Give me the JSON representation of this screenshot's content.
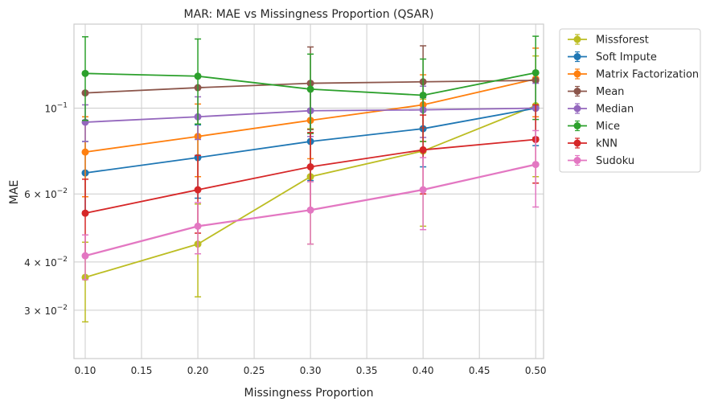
{
  "chart_data": {
    "type": "line",
    "title": "MAR: MAE vs Missingness Proportion (QSAR)",
    "xlabel": "Missingness Proportion",
    "ylabel": "MAE",
    "x": [
      0.1,
      0.2,
      0.3,
      0.4,
      0.5
    ],
    "xlim": [
      0.09,
      0.507
    ],
    "ylim": [
      0.0225,
      0.165
    ],
    "yscale": "log",
    "grid": true,
    "legend_position": "outside-right",
    "x_ticks": [
      0.1,
      0.15,
      0.2,
      0.25,
      0.3,
      0.35,
      0.4,
      0.45,
      0.5
    ],
    "x_tick_labels": [
      "0.10",
      "0.15",
      "0.20",
      "0.25",
      "0.30",
      "0.35",
      "0.40",
      "0.45",
      "0.50"
    ],
    "y_ticks": [
      {
        "value": 0.1,
        "base": "10",
        "exp": "−1"
      },
      {
        "value": 0.06,
        "base": "6 × 10",
        "exp": "−2"
      },
      {
        "value": 0.04,
        "base": "4 × 10",
        "exp": "−2"
      },
      {
        "value": 0.03,
        "base": "3 × 10",
        "exp": "−2"
      }
    ],
    "series": [
      {
        "name": "Missforest",
        "color": "#bcbd22",
        "values": [
          0.0365,
          0.0445,
          0.0665,
          0.0775,
          0.1015
        ],
        "errors": [
          0.0085,
          0.012,
          0.022,
          0.028,
          0.035
        ]
      },
      {
        "name": "Soft Impute",
        "color": "#1f77b4",
        "values": [
          0.068,
          0.0745,
          0.082,
          0.0885,
          0.1
        ],
        "errors": [
          0.014,
          0.016,
          0.017,
          0.018,
          0.02
        ]
      },
      {
        "name": "Matrix Factorization",
        "color": "#ff7f0e",
        "values": [
          0.077,
          0.0845,
          0.093,
          0.102,
          0.119
        ],
        "errors": [
          0.018,
          0.018,
          0.019,
          0.02,
          0.024
        ]
      },
      {
        "name": "Mean",
        "color": "#8c564b",
        "values": [
          0.1095,
          0.113,
          0.116,
          0.117,
          0.118
        ],
        "errors": [
          0.0,
          0.0,
          0.028,
          0.028,
          0.0
        ]
      },
      {
        "name": "Median",
        "color": "#9467bd",
        "values": [
          0.092,
          0.095,
          0.0985,
          0.099,
          0.1
        ],
        "errors": [
          0.01,
          0.012,
          0.014,
          0.015,
          0.016
        ]
      },
      {
        "name": "Mice",
        "color": "#2ca02c",
        "values": [
          0.123,
          0.121,
          0.112,
          0.108,
          0.1235
        ],
        "errors": [
          0.03,
          0.03,
          0.026,
          0.026,
          0.03
        ]
      },
      {
        "name": "kNN",
        "color": "#d62728",
        "values": [
          0.0535,
          0.0615,
          0.0705,
          0.078,
          0.083
        ],
        "errors": [
          0.012,
          0.014,
          0.016,
          0.018,
          0.019
        ]
      },
      {
        "name": "Sudoku",
        "color": "#e377c2",
        "values": [
          0.0415,
          0.0495,
          0.0545,
          0.0615,
          0.0715
        ],
        "errors": [
          0.0055,
          0.0075,
          0.01,
          0.013,
          0.016
        ]
      }
    ]
  }
}
